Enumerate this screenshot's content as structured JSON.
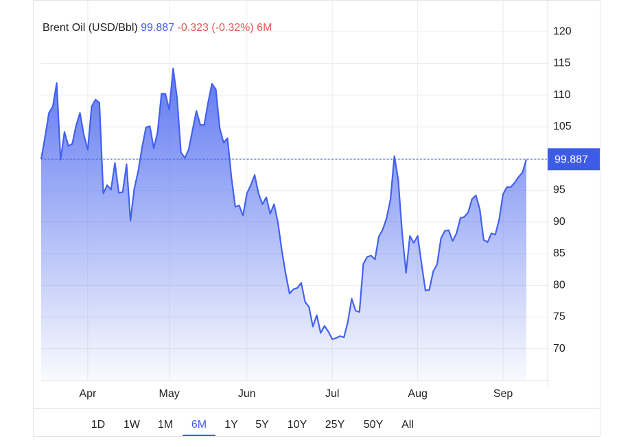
{
  "chart_data": {
    "type": "area",
    "title": "Brent Oil (USD/Bbl)",
    "change": "-0.323 (-0.32%)",
    "selected": "6M",
    "ranges": [
      "1D",
      "1W",
      "1M",
      "6M",
      "1Y",
      "5Y",
      "10Y",
      "25Y",
      "50Y",
      "All"
    ],
    "categories": [
      null,
      null,
      null,
      null,
      null,
      null,
      null,
      null,
      null,
      null,
      null,
      null,
      "Apr",
      null,
      null,
      null,
      null,
      null,
      null,
      null,
      null,
      null,
      null,
      null,
      null,
      null,
      null,
      null,
      null,
      null,
      null,
      null,
      null,
      "May",
      null,
      null,
      null,
      null,
      null,
      null,
      null,
      null,
      null,
      null,
      null,
      null,
      null,
      null,
      null,
      null,
      null,
      null,
      null,
      "Jun",
      null,
      null,
      null,
      null,
      null,
      null,
      null,
      null,
      null,
      null,
      null,
      null,
      null,
      null,
      null,
      null,
      null,
      null,
      null,
      null,
      null,
      "Jul",
      null,
      null,
      null,
      null,
      null,
      null,
      null,
      null,
      null,
      null,
      null,
      null,
      null,
      null,
      null,
      null,
      null,
      null,
      null,
      null,
      null,
      "Aug",
      null,
      null,
      null,
      null,
      null,
      null,
      null,
      null,
      null,
      null,
      null,
      null,
      null,
      null,
      null,
      null,
      null,
      null,
      null,
      null,
      null,
      "Sep",
      null,
      null,
      null,
      null,
      null,
      null
    ],
    "values": [
      99.9,
      103.4,
      107.2,
      108.2,
      111.9,
      99.8,
      104.2,
      102,
      102.3,
      105.2,
      107.2,
      103.7,
      101.4,
      108.2,
      109.3,
      108.8,
      94.5,
      95.8,
      95.1,
      99.3,
      94.6,
      94.7,
      99.1,
      90.2,
      95.3,
      98,
      101.8,
      104.9,
      105.1,
      101.6,
      104.2,
      110.2,
      110.2,
      107.7,
      114.2,
      109.6,
      101,
      100.1,
      101.4,
      104.5,
      107.5,
      105.3,
      105.3,
      108.8,
      111.8,
      110.9,
      104.8,
      102.5,
      103.2,
      97.1,
      92.4,
      92.6,
      91,
      94.5,
      95.8,
      97.4,
      94.5,
      92.8,
      93.9,
      91.3,
      92.8,
      89.9,
      85.5,
      81.8,
      78.7,
      79.4,
      79.6,
      80.4,
      77.4,
      76.6,
      73.5,
      75.3,
      72.5,
      73.6,
      72.7,
      71.5,
      71.7,
      72,
      71.8,
      74.2,
      77.9,
      76,
      75.8,
      83.4,
      84.5,
      84.7,
      84.1,
      87.7,
      88.8,
      90.6,
      93.6,
      100.4,
      96.6,
      88.2,
      82,
      87.8,
      86.7,
      87.8,
      83.4,
      79.2,
      79.3,
      82.2,
      83.3,
      87.4,
      88.6,
      88.7,
      87,
      88.2,
      90.6,
      90.8,
      91.5,
      93.6,
      94.2,
      92,
      87.2,
      86.8,
      88.2,
      88,
      90.4,
      94.4,
      95.5,
      95.5,
      96.2,
      97.1,
      97.8,
      99.887
    ],
    "color": "#4361ee",
    "ylim": [
      65,
      125
    ],
    "yticks": [
      70,
      75,
      80,
      85,
      90,
      95,
      100,
      105,
      110,
      115,
      120
    ],
    "grid": true
  }
}
